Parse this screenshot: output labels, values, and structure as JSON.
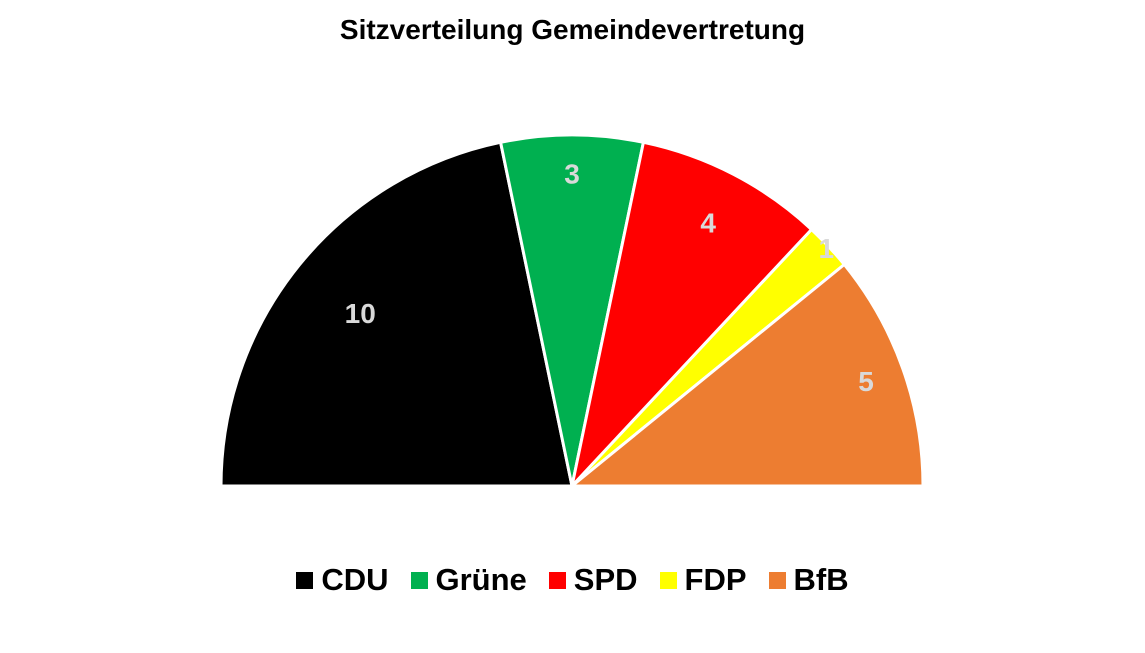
{
  "chart_data": {
    "type": "pie",
    "subtype": "semicircle",
    "title": "Sitzverteilung Gemeindevertretung",
    "categories": [
      "CDU",
      "Grüne",
      "SPD",
      "FDP",
      "BfB"
    ],
    "values": [
      10,
      3,
      4,
      1,
      5
    ],
    "colors": [
      "#000000",
      "#00b050",
      "#ff0000",
      "#ffff00",
      "#ed7d31"
    ],
    "label_colors": [
      "#d9d9d9",
      "#d9d9d9",
      "#d9d9d9",
      "#d9d9d9",
      "#d9d9d9"
    ],
    "legend_position": "bottom"
  }
}
